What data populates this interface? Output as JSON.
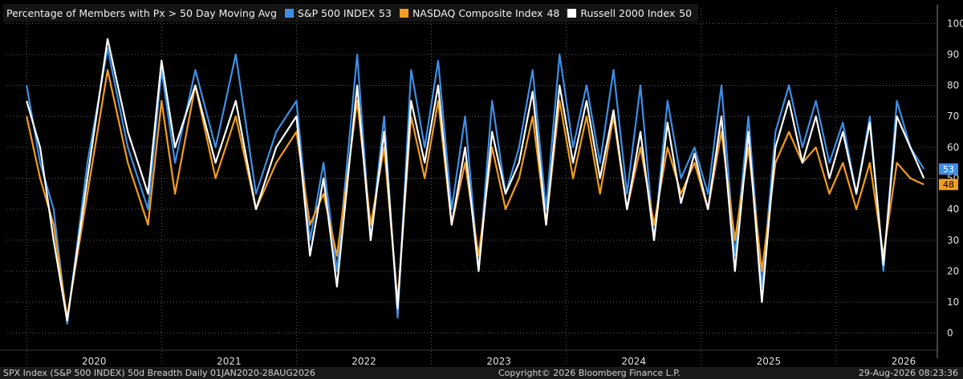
{
  "chart_data": {
    "type": "line",
    "title": "Percentage of Members with Px > 50 Day Moving Avg",
    "ylim": [
      -5,
      105
    ],
    "yticks": [
      0,
      10,
      20,
      30,
      40,
      50,
      60,
      70,
      80,
      90,
      100
    ],
    "x_tick_labels": [
      "2020",
      "2021",
      "2022",
      "2023",
      "2024",
      "2025",
      "2026"
    ],
    "x_period": "01JAN2020-28AUG2026",
    "grid": true,
    "legend_position": "top-left",
    "x": [
      2020.0,
      2020.1,
      2020.2,
      2020.3,
      2020.45,
      2020.6,
      2020.75,
      2020.9,
      2021.0,
      2021.1,
      2021.25,
      2021.4,
      2021.55,
      2021.7,
      2021.85,
      2022.0,
      2022.1,
      2022.2,
      2022.3,
      2022.45,
      2022.55,
      2022.65,
      2022.75,
      2022.85,
      2022.95,
      2023.05,
      2023.15,
      2023.25,
      2023.35,
      2023.45,
      2023.55,
      2023.65,
      2023.75,
      2023.85,
      2023.95,
      2024.05,
      2024.15,
      2024.25,
      2024.35,
      2024.45,
      2024.55,
      2024.65,
      2024.75,
      2024.85,
      2024.95,
      2025.05,
      2025.15,
      2025.25,
      2025.35,
      2025.45,
      2025.55,
      2025.65,
      2025.75,
      2025.85,
      2025.95,
      2026.05,
      2026.15,
      2026.25,
      2026.35,
      2026.45,
      2026.55,
      2026.65
    ],
    "series": [
      {
        "name": "S&P 500 INDEX",
        "last": "53",
        "color": "#3d8fe6",
        "values": [
          80,
          55,
          40,
          3,
          55,
          92,
          60,
          40,
          85,
          55,
          85,
          60,
          90,
          45,
          65,
          75,
          30,
          55,
          20,
          90,
          30,
          70,
          5,
          85,
          60,
          88,
          40,
          70,
          20,
          75,
          45,
          60,
          85,
          40,
          90,
          60,
          80,
          55,
          85,
          45,
          80,
          30,
          75,
          50,
          60,
          45,
          80,
          25,
          70,
          15,
          65,
          80,
          60,
          75,
          55,
          68,
          45,
          70,
          20,
          75,
          60,
          53
        ]
      },
      {
        "name": "NASDAQ Composite Index",
        "last": "48",
        "color": "#f39c1f",
        "values": [
          70,
          50,
          35,
          5,
          45,
          85,
          55,
          35,
          75,
          45,
          80,
          50,
          70,
          40,
          55,
          65,
          35,
          45,
          25,
          75,
          35,
          60,
          10,
          70,
          50,
          75,
          35,
          55,
          25,
          60,
          40,
          50,
          70,
          35,
          75,
          50,
          70,
          45,
          70,
          40,
          60,
          35,
          60,
          45,
          55,
          40,
          65,
          30,
          60,
          20,
          55,
          65,
          55,
          60,
          45,
          55,
          40,
          55,
          25,
          55,
          50,
          48
        ]
      },
      {
        "name": "Russell 2000 Index",
        "last": "50",
        "color": "#ffffff",
        "values": [
          75,
          60,
          30,
          4,
          50,
          95,
          65,
          45,
          88,
          60,
          80,
          55,
          75,
          40,
          60,
          70,
          25,
          50,
          15,
          80,
          30,
          65,
          8,
          75,
          55,
          80,
          35,
          60,
          20,
          65,
          45,
          55,
          78,
          35,
          80,
          55,
          75,
          50,
          72,
          40,
          65,
          30,
          68,
          42,
          58,
          40,
          70,
          20,
          65,
          10,
          60,
          75,
          55,
          70,
          50,
          65,
          45,
          68,
          22,
          70,
          60,
          50
        ]
      }
    ]
  },
  "footer": {
    "left": "SPX Index (S&P 500 INDEX) 50d Breadth Daily 01JAN2020-28AUG2026",
    "center": "Copyright© 2026 Bloomberg Finance L.P.",
    "right": "29-Aug-2026 08:23:36"
  }
}
